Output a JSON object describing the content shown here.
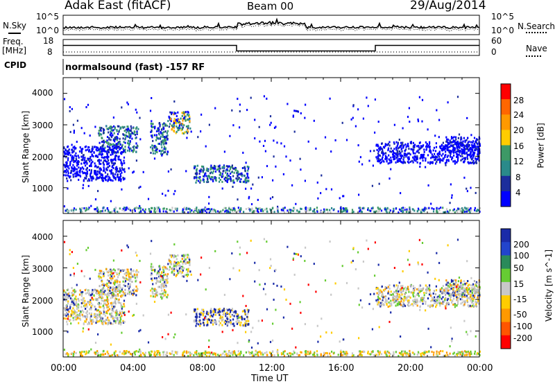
{
  "header": {
    "site": "Adak East (fitACF)",
    "beam": "Beam 00",
    "date": "29/Aug/2014"
  },
  "strips": {
    "nsky_label": "N.Sky",
    "nsearch_label": "N.Search",
    "noise_ticks": [
      "10^5",
      "10^0"
    ],
    "noise_ticks_right": [
      "10^5",
      "10^0"
    ],
    "freq_label": "Freq.",
    "freq_unit": "[MHz]",
    "freq_ticks": [
      "18",
      "8"
    ],
    "nave_label": "Nave",
    "nave_ticks": [
      "60",
      "0"
    ],
    "cpid_label": "CPID",
    "cpid_text": "normalsound (fast) -157 RF"
  },
  "chart_data": [
    {
      "type": "heatmap",
      "name": "power",
      "ylabel": "Slant Range [km]",
      "xlabel": "",
      "ylim": [
        180,
        4500
      ],
      "xlim": [
        0,
        24
      ],
      "y_ticks": [
        "4000",
        "3000",
        "2000",
        "1000"
      ],
      "colorbar_label": "Power [dB]",
      "colorbar_ticks": [
        "28",
        "24",
        "20",
        "16",
        "12",
        "8",
        "4"
      ],
      "colorbar_colors": [
        "#ff0000",
        "#ff6600",
        "#ff9900",
        "#ffcc00",
        "#3d9966",
        "#2a8a8a",
        "#1c2e9c",
        "#0000ff"
      ],
      "echo_regions": [
        {
          "t0": 2.0,
          "t1": 4.3,
          "r0": 2100,
          "r1": 2950,
          "color": "blue-green"
        },
        {
          "t0": 5.0,
          "t1": 6.0,
          "r0": 2050,
          "r1": 3050,
          "color": "blue-green"
        },
        {
          "t0": 6.0,
          "t1": 7.3,
          "r0": 2700,
          "r1": 3400,
          "color": "green-yellow"
        },
        {
          "t0": 0.0,
          "t1": 3.5,
          "r0": 1200,
          "r1": 2300,
          "color": "blue"
        },
        {
          "t0": 7.5,
          "t1": 10.7,
          "r0": 1150,
          "r1": 1700,
          "color": "blue-green"
        },
        {
          "t0": 18.0,
          "t1": 24.0,
          "r0": 1750,
          "r1": 2450,
          "color": "blue"
        },
        {
          "t0": 22.0,
          "t1": 24.0,
          "r0": 2100,
          "r1": 2600,
          "color": "blue"
        }
      ]
    },
    {
      "type": "heatmap",
      "name": "velocity",
      "ylabel": "Slant Range [km]",
      "xlabel": "Time UT",
      "ylim": [
        180,
        4500
      ],
      "xlim": [
        0,
        24
      ],
      "y_ticks": [
        "4000",
        "3000",
        "2000",
        "1000"
      ],
      "x_ticks": [
        "00:00",
        "04:00",
        "08:00",
        "12:00",
        "16:00",
        "20:00",
        "00:00"
      ],
      "colorbar_label": "Velocity [m s^-1]",
      "colorbar_ticks": [
        "200",
        "100",
        "50",
        "15",
        "-15",
        "-50",
        "-100",
        "-200"
      ],
      "colorbar_colors": [
        "#1a2ba8",
        "#2244cc",
        "#2a8a5a",
        "#66cc33",
        "#c8c8c8",
        "#ffcc00",
        "#ff9900",
        "#ff5500",
        "#ff0000"
      ]
    }
  ],
  "colors": {
    "axis": "#000000",
    "ground_scatter": "#c0c0c0"
  }
}
